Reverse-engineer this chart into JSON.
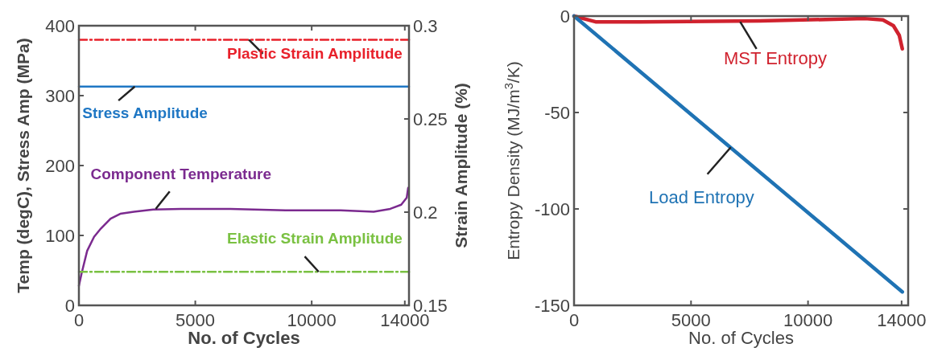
{
  "chart_data": [
    {
      "type": "line",
      "xlabel": "No. of Cycles",
      "ylabel": "Temp (degC), Stress Amp (MPa)",
      "y2label": "Strain Amplitude (%)",
      "xlim": [
        0,
        14180
      ],
      "xticks": [
        0,
        5000,
        10000,
        14000
      ],
      "ylim": [
        0,
        400
      ],
      "yticks": [
        0,
        100,
        200,
        300,
        400
      ],
      "y2lim": [
        0.15,
        0.3
      ],
      "y2ticks": [
        0.15,
        0.2,
        0.25,
        0.3
      ],
      "grid": false,
      "series": [
        {
          "name": "Plastic Strain Amplitude",
          "color": "#e8202a",
          "axis": "y2",
          "line_style": "dashed",
          "x": [
            0,
            14180
          ],
          "values": [
            0.2925,
            0.2925
          ]
        },
        {
          "name": "Stress Amplitude",
          "color": "#1f77c4",
          "line_style": "solid",
          "x": [
            0,
            14180
          ],
          "values": [
            313,
            313
          ]
        },
        {
          "name": "Component Temperature",
          "color": "#7b2a8f",
          "line_style": "solid",
          "x": [
            0,
            118,
            355,
            651,
            947,
            1361,
            1775,
            2367,
            3195,
            4379,
            6509,
            8876,
            11243,
            12663,
            13373,
            13846,
            14083,
            14142
          ],
          "values": [
            28,
            46,
            78,
            98,
            110,
            124,
            131,
            134,
            137,
            138,
            138,
            136,
            136,
            134,
            138,
            144,
            154,
            168
          ]
        },
        {
          "name": "Elastic Strain Amplitude",
          "color": "#7ac142",
          "axis": "y2",
          "line_style": "dashed",
          "x": [
            0,
            14180
          ],
          "values": [
            0.168,
            0.168
          ]
        }
      ]
    },
    {
      "type": "line",
      "xlabel": "No. of Cycles",
      "ylabel": "Entropy Density (MJ/m$^{3}$/K)",
      "xlim": [
        0,
        14280
      ],
      "xticks": [
        0,
        5000,
        10000,
        14000
      ],
      "ylim": [
        -150,
        0
      ],
      "yticks": [
        -150,
        -100,
        -50,
        0
      ],
      "grid": false,
      "series": [
        {
          "name": "MST Entropy",
          "color": "#d0222e",
          "line_style": "solid",
          "x": [
            0,
            920,
            2840,
            7950,
            12430,
            13200,
            13650,
            13900,
            14030
          ],
          "values": [
            0,
            -3,
            -3,
            -2.5,
            -1.3,
            -2,
            -5,
            -10,
            -17
          ]
        },
        {
          "name": "Load Entropy",
          "color": "#1f73b4",
          "line_style": "solid",
          "x": [
            0,
            14030
          ],
          "values": [
            0,
            -143
          ]
        }
      ]
    }
  ]
}
